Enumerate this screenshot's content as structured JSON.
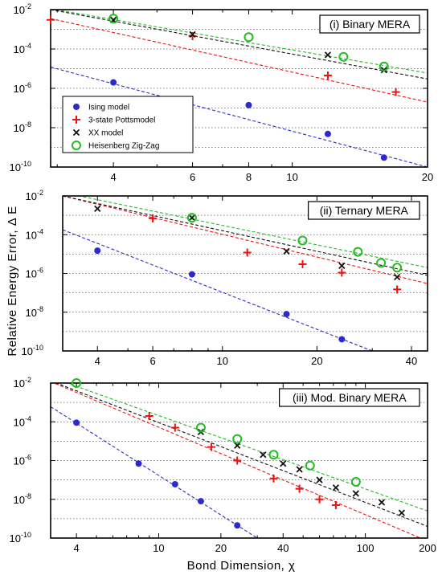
{
  "figure": {
    "ylabel": "Relative Energy Error, Δ E",
    "xlabel": "Bond Dimension, χ"
  },
  "legend": {
    "entries": [
      {
        "name": "Ising model",
        "marker": "dot",
        "color": "#2a2ad0"
      },
      {
        "name": "3-state Pottsmodel",
        "marker": "plus",
        "color": "#ee1111"
      },
      {
        "name": "XX model",
        "marker": "cross",
        "color": "#111111"
      },
      {
        "name": "Heisenberg Zig-Zag",
        "marker": "circle",
        "color": "#22bb22"
      }
    ]
  },
  "chart_data": [
    {
      "type": "scatter",
      "title": "(i) Binary MERA",
      "xscale": "log",
      "yscale": "log",
      "xlim": [
        2.9,
        20
      ],
      "ylim": [
        1e-10,
        0.01
      ],
      "xticks": [
        4,
        6,
        8,
        10,
        20
      ],
      "xtick_labels": [
        "4",
        "6",
        "8",
        "10",
        "20"
      ],
      "yticks": [
        1e-10,
        1e-08,
        1e-06,
        0.0001,
        0.01
      ],
      "ytick_labels": [
        [
          "10",
          "-10"
        ],
        [
          "10",
          "-8"
        ],
        [
          "10",
          "-6"
        ],
        [
          "10",
          "-4"
        ],
        [
          "10",
          "-2"
        ]
      ],
      "grid": "horizontal-dotted",
      "series": [
        {
          "name": "Ising model",
          "x": [
            4,
            8,
            12,
            16
          ],
          "y": [
            2e-06,
            1.4e-07,
            4.8e-09,
            3e-10
          ],
          "fit": [
            [
              2.9,
              1.2e-05
            ],
            [
              20,
              1e-10
            ]
          ]
        },
        {
          "name": "3-state Pottsmodel",
          "x": [
            2.9,
            6,
            12,
            17
          ],
          "y": [
            0.003,
            0.00045,
            4.5e-06,
            6.5e-07
          ],
          "fit": [
            [
              2.9,
              0.0035
            ],
            [
              20,
              2e-07
            ]
          ]
        },
        {
          "name": "XX model",
          "x": [
            4,
            6,
            12,
            16
          ],
          "y": [
            0.003,
            0.00055,
            5e-05,
            8.5e-06
          ],
          "fit": [
            [
              2.9,
              0.01
            ],
            [
              20,
              3e-06
            ]
          ]
        },
        {
          "name": "Heisenberg Zig-Zag",
          "x": [
            4,
            8,
            13,
            16
          ],
          "y": [
            0.0035,
            0.0004,
            4e-05,
            1.3e-05
          ],
          "fit": [
            [
              2.9,
              0.011
            ],
            [
              20,
              6e-06
            ]
          ]
        }
      ]
    },
    {
      "type": "scatter",
      "title": "(ii) Ternary MERA",
      "xscale": "log",
      "yscale": "log",
      "xlim": [
        3.1,
        45
      ],
      "ylim": [
        1e-10,
        0.01
      ],
      "xticks": [
        4,
        6,
        10,
        20,
        40
      ],
      "xtick_labels": [
        "4",
        "6",
        "10",
        "20",
        "40"
      ],
      "yticks": [
        1e-10,
        1e-08,
        1e-06,
        0.0001,
        0.01
      ],
      "ytick_labels": [
        [
          "10",
          "-10"
        ],
        [
          "10",
          "-8"
        ],
        [
          "10",
          "-6"
        ],
        [
          "10",
          "-4"
        ],
        [
          "10",
          "-2"
        ]
      ],
      "grid": "horizontal-dotted",
      "series": [
        {
          "name": "Ising model",
          "x": [
            4,
            8,
            16,
            24
          ],
          "y": [
            1.5e-05,
            9e-07,
            8e-09,
            4e-10
          ],
          "fit": [
            [
              3.1,
              0.00018
            ],
            [
              30,
              1e-10
            ]
          ]
        },
        {
          "name": "3-state Pottsmodel",
          "x": [
            6,
            12,
            18,
            24,
            36
          ],
          "y": [
            0.0007,
            1.2e-05,
            3e-06,
            1.1e-06,
            1.5e-07
          ],
          "fit": [
            [
              3.1,
              0.01
            ],
            [
              45,
              3e-07
            ]
          ]
        },
        {
          "name": "XX model",
          "x": [
            4,
            8,
            16,
            24,
            36
          ],
          "y": [
            0.0022,
            0.00075,
            1.4e-05,
            2.5e-06,
            6.5e-07
          ],
          "fit": [
            [
              3.1,
              0.01
            ],
            [
              45,
              8e-07
            ]
          ]
        },
        {
          "name": "Heisenberg Zig-Zag",
          "x": [
            8,
            18,
            27,
            32,
            36
          ],
          "y": [
            0.00075,
            5e-05,
            1.3e-05,
            3.5e-06,
            2e-06
          ],
          "fit": [
            [
              3.1,
              0.015
            ],
            [
              45,
              2e-06
            ]
          ]
        }
      ]
    },
    {
      "type": "scatter",
      "title": "(iii) Mod. Binary MERA",
      "xscale": "log",
      "yscale": "log",
      "xlim": [
        3,
        200
      ],
      "ylim": [
        1e-10,
        0.01
      ],
      "xticks": [
        4,
        10,
        20,
        40,
        100,
        200
      ],
      "xtick_labels": [
        "4",
        "10",
        "20",
        "40",
        "100",
        "200"
      ],
      "yticks": [
        1e-10,
        1e-08,
        1e-06,
        0.0001,
        0.01
      ],
      "ytick_labels": [
        [
          "10",
          "-10"
        ],
        [
          "10",
          "-8"
        ],
        [
          "10",
          "-6"
        ],
        [
          "10",
          "-4"
        ],
        [
          "10",
          "-2"
        ]
      ],
      "grid": "horizontal-dotted",
      "series": [
        {
          "name": "Ising model",
          "x": [
            4,
            8,
            12,
            16,
            24
          ],
          "y": [
            9e-05,
            7e-07,
            6e-08,
            8e-09,
            4.5e-10
          ],
          "fit": [
            [
              3,
              0.0006
            ],
            [
              30,
              1e-10
            ]
          ]
        },
        {
          "name": "3-state Pottsmodel",
          "x": [
            9,
            12,
            18,
            24,
            36,
            48,
            60,
            72
          ],
          "y": [
            0.0002,
            5e-05,
            5e-06,
            1e-06,
            1.2e-07,
            3.5e-08,
            1e-08,
            5e-09
          ],
          "fit": [
            [
              3,
              0.012
            ],
            [
              200,
              7e-11
            ]
          ]
        },
        {
          "name": "XX model",
          "x": [
            16,
            24,
            32,
            40,
            48,
            60,
            72,
            90,
            120,
            150
          ],
          "y": [
            3e-05,
            6e-06,
            2e-06,
            7e-07,
            3.5e-07,
            1e-07,
            4e-08,
            2e-08,
            7e-09,
            2e-09
          ],
          "fit": [
            [
              3,
              0.013
            ],
            [
              200,
              4e-10
            ]
          ]
        },
        {
          "name": "Heisenberg Zig-Zag",
          "x": [
            4,
            16,
            24,
            36,
            54,
            90
          ],
          "y": [
            0.01,
            5e-05,
            1.3e-05,
            2e-06,
            5.5e-07,
            8e-08
          ],
          "fit": [
            [
              3,
              0.02
            ],
            [
              200,
              2.5e-09
            ]
          ]
        }
      ]
    }
  ]
}
